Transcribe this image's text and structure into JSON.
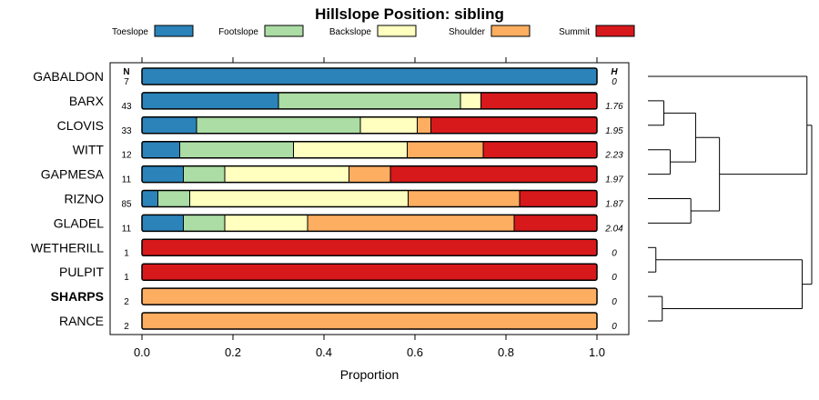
{
  "chart_data": {
    "type": "bar",
    "orientation": "horizontal-stacked",
    "title": "Hillslope Position: sibling",
    "xlabel": "Proportion",
    "ylabel": "",
    "xlim": [
      0,
      1
    ],
    "x_ticks": [
      "0.0",
      "0.2",
      "0.4",
      "0.6",
      "0.8",
      "1.0"
    ],
    "legend_placement": "top",
    "series": [
      {
        "name": "Toeslope",
        "color": "#2b83ba"
      },
      {
        "name": "Footslope",
        "color": "#abdda4"
      },
      {
        "name": "Backslope",
        "color": "#ffffbf"
      },
      {
        "name": "Shoulder",
        "color": "#fdae61"
      },
      {
        "name": "Summit",
        "color": "#d7191c"
      }
    ],
    "n_header": "N",
    "h_header": "H",
    "categories": [
      {
        "name": "GABALDON",
        "n": "7",
        "h": "0",
        "bold": false,
        "values": [
          1.0,
          0,
          0,
          0,
          0
        ]
      },
      {
        "name": "BARX",
        "n": "43",
        "h": "1.76",
        "bold": false,
        "values": [
          0.3,
          0.4,
          0.045,
          0,
          0.255
        ]
      },
      {
        "name": "CLOVIS",
        "n": "33",
        "h": "1.95",
        "bold": false,
        "values": [
          0.12,
          0.36,
          0.125,
          0.03,
          0.365
        ]
      },
      {
        "name": "WITT",
        "n": "12",
        "h": "2.23",
        "bold": false,
        "values": [
          0.083,
          0.25,
          0.25,
          0.167,
          0.25
        ]
      },
      {
        "name": "GAPMESA",
        "n": "11",
        "h": "1.97",
        "bold": false,
        "values": [
          0.091,
          0.091,
          0.273,
          0.091,
          0.454
        ]
      },
      {
        "name": "RIZNO",
        "n": "85",
        "h": "1.87",
        "bold": false,
        "values": [
          0.035,
          0.07,
          0.48,
          0.245,
          0.17
        ]
      },
      {
        "name": "GLADEL",
        "n": "11",
        "h": "2.04",
        "bold": false,
        "values": [
          0.091,
          0.091,
          0.182,
          0.454,
          0.182
        ]
      },
      {
        "name": "WETHERILL",
        "n": "1",
        "h": "0",
        "bold": false,
        "values": [
          0,
          0,
          0,
          0,
          1.0
        ]
      },
      {
        "name": "PULPIT",
        "n": "1",
        "h": "0",
        "bold": false,
        "values": [
          0,
          0,
          0,
          0,
          1.0
        ]
      },
      {
        "name": "SHARPS",
        "n": "2",
        "h": "0",
        "bold": true,
        "values": [
          0,
          0,
          0,
          1.0,
          0
        ]
      },
      {
        "name": "RANCE",
        "n": "2",
        "h": "0",
        "bold": false,
        "values": [
          0,
          0,
          0,
          1.0,
          0
        ]
      }
    ],
    "dendrogram": {
      "type": "hierarchical-cluster",
      "merges": [
        {
          "left": "BARX",
          "right": "CLOVIS",
          "height": 0.1
        },
        {
          "left": "WITT",
          "right": "GAPMESA",
          "height": 0.14
        },
        {
          "left": "RIZNO",
          "right": "GLADEL",
          "height": 0.27
        },
        {
          "left": "BARX+CLOVIS",
          "right": "WITT+GAPMESA",
          "height": 0.3
        },
        {
          "left": "cluster-A",
          "right": "RIZNO+GLADEL",
          "height": 0.45
        },
        {
          "left": "GABALDON",
          "right": "cluster-B",
          "height": 1.0
        },
        {
          "left": "WETHERILL",
          "right": "PULPIT",
          "height": 0.05
        },
        {
          "left": "SHARPS",
          "right": "RANCE",
          "height": 0.09
        },
        {
          "left": "WETHERILL+PULPIT",
          "right": "SHARPS+RANCE",
          "height": 0.97
        },
        {
          "left": "upper",
          "right": "lower",
          "height": 1.03
        }
      ]
    }
  }
}
